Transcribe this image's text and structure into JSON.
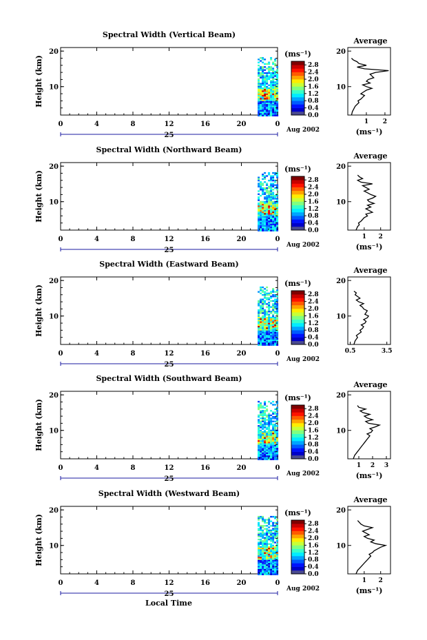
{
  "panels": [
    {
      "title": "Spectral Width (Vertical Beam)",
      "ylabel": "Height (km)",
      "y_ticks": [
        "20",
        "10"
      ],
      "x_ticks": [
        "0",
        "4",
        "8",
        "12",
        "16",
        "20",
        "0"
      ],
      "date_day": "25",
      "date_tag": "Aug 2002",
      "colorbar": {
        "unit": "(ms⁻¹)",
        "labels": [
          "2.8",
          "2.4",
          "2.0",
          "1.6",
          "1.2",
          "0.8",
          "0.4",
          "0.0"
        ]
      },
      "avg": {
        "title": "Average",
        "y_ticks": [
          "20",
          "10"
        ],
        "x_ticks": [
          "1",
          "2"
        ],
        "x_tick_values": [
          1,
          2
        ],
        "xlim": [
          0,
          2.3
        ],
        "unit": "(ms⁻¹)"
      }
    },
    {
      "title": "Spectral Width (Northward Beam)",
      "ylabel": "Height (km)",
      "y_ticks": [
        "20",
        "10"
      ],
      "x_ticks": [
        "0",
        "4",
        "8",
        "12",
        "16",
        "20",
        "0"
      ],
      "date_day": "25",
      "date_tag": "Aug 2002",
      "colorbar": {
        "unit": "(ms⁻¹)",
        "labels": [
          "2.8",
          "2.4",
          "2.0",
          "1.6",
          "1.2",
          "0.8",
          "0.4",
          "0.0"
        ]
      },
      "avg": {
        "title": "Average",
        "y_ticks": [
          "20",
          "10"
        ],
        "x_ticks": [
          "1",
          "2"
        ],
        "x_tick_values": [
          1,
          2
        ],
        "xlim": [
          0,
          2.6
        ],
        "unit": "(ms⁻¹)"
      }
    },
    {
      "title": "Spectral Width (Eastward Beam)",
      "ylabel": "Height (km)",
      "y_ticks": [
        "20",
        "10"
      ],
      "x_ticks": [
        "0",
        "4",
        "8",
        "12",
        "16",
        "20",
        "0"
      ],
      "date_day": "25",
      "date_tag": "Aug 2002",
      "colorbar": {
        "unit": "(ms⁻¹)",
        "labels": [
          "2.8",
          "2.4",
          "2.0",
          "1.6",
          "1.2",
          "0.8",
          "0.4",
          "0.0"
        ]
      },
      "avg": {
        "title": "Average",
        "y_ticks": [
          "20",
          "10"
        ],
        "x_ticks": [
          "0.5",
          "3.5"
        ],
        "x_tick_values": [
          0.5,
          3.5
        ],
        "xlim": [
          0.3,
          3.8
        ],
        "unit": ""
      }
    },
    {
      "title": "Spectral Width (Southward Beam)",
      "ylabel": "Height (km)",
      "y_ticks": [
        "20",
        "10"
      ],
      "x_ticks": [
        "0",
        "4",
        "8",
        "12",
        "16",
        "20",
        "0"
      ],
      "date_day": "25",
      "date_tag": "Aug 2002",
      "colorbar": {
        "unit": "(ms⁻¹)",
        "labels": [
          "2.8",
          "2.4",
          "2.0",
          "1.6",
          "1.2",
          "0.8",
          "0.4",
          "0.0"
        ]
      },
      "avg": {
        "title": "Average",
        "y_ticks": [
          "20",
          "10"
        ],
        "x_ticks": [
          "1",
          "2",
          "3"
        ],
        "x_tick_values": [
          1,
          2,
          3
        ],
        "xlim": [
          0.2,
          3.3
        ],
        "unit": "(ms⁻¹)"
      }
    },
    {
      "title": "Spectral Width (Westward Beam)",
      "ylabel": "Height (km)",
      "y_ticks": [
        "20",
        "10"
      ],
      "x_ticks": [
        "0",
        "4",
        "8",
        "12",
        "16",
        "20",
        "0"
      ],
      "date_day": "25",
      "date_tag": "Aug 2002",
      "colorbar": {
        "unit": "(ms⁻¹)",
        "labels": [
          "2.8",
          "2.4",
          "2.0",
          "1.6",
          "1.2",
          "0.8",
          "0.4",
          "0.0"
        ]
      },
      "avg": {
        "title": "Average",
        "y_ticks": [
          "20",
          "10"
        ],
        "x_ticks": [
          "1",
          "2"
        ],
        "x_tick_values": [
          1,
          2
        ],
        "xlim": [
          0,
          2.6
        ],
        "unit": "(ms⁻¹)"
      }
    }
  ],
  "xlabel": "Local Time",
  "chart_data": [
    {
      "type": "heatmap",
      "title": "Spectral Width (Vertical Beam)",
      "xlabel": "Local Time",
      "ylabel": "Height (km)",
      "xlim": [
        0,
        24
      ],
      "ylim": [
        2,
        21
      ],
      "data_x_range": [
        21.8,
        24
      ],
      "data_y_range": [
        2,
        18.3
      ],
      "colorscale_range": [
        0,
        3
      ],
      "colorbar_ticks": [
        0,
        0.4,
        0.8,
        1.2,
        1.6,
        2.0,
        2.4,
        2.8
      ],
      "avg_profile": {
        "x": [
          0.2,
          0.25,
          0.3,
          0.35,
          0.4,
          0.5,
          0.6,
          0.55,
          0.7,
          0.8,
          0.9,
          0.7,
          0.85,
          1.0,
          1.3,
          1.0,
          0.8,
          1.2,
          1.0,
          1.1,
          1.4,
          1.3,
          1.2,
          1.5,
          2.2,
          0.9,
          0.5,
          1.0,
          0.6,
          0.5,
          0.3,
          0.2
        ],
        "y": [
          2,
          3,
          3.5,
          4,
          4.5,
          5,
          5.5,
          6,
          6.5,
          7,
          7.5,
          8,
          8.5,
          9,
          9.5,
          10,
          10.5,
          11,
          11.5,
          12,
          12.5,
          13,
          13.5,
          14,
          14.5,
          15,
          15.5,
          16,
          16.5,
          17,
          17.5,
          18
        ]
      }
    },
    {
      "type": "heatmap",
      "title": "Spectral Width (Northward Beam)",
      "xlabel": "Local Time",
      "ylabel": "Height (km)",
      "xlim": [
        0,
        24
      ],
      "ylim": [
        2,
        21
      ],
      "data_x_range": [
        21.8,
        24
      ],
      "data_y_range": [
        2,
        18.3
      ],
      "colorscale_range": [
        0,
        3
      ],
      "colorbar_ticks": [
        0,
        0.4,
        0.8,
        1.2,
        1.6,
        2.0,
        2.4,
        2.8
      ],
      "avg_profile": {
        "x": [
          0.5,
          0.6,
          0.7,
          0.65,
          0.8,
          0.9,
          1.0,
          1.2,
          1.1,
          1.5,
          1.3,
          1.1,
          1.4,
          1.2,
          1.6,
          1.3,
          1.2,
          1.5,
          1.7,
          1.4,
          1.2,
          1.0,
          1.3,
          1.1,
          0.9,
          1.5,
          0.8,
          0.6,
          0.9,
          0.7,
          0.6
        ],
        "y": [
          2,
          3,
          3.5,
          4,
          4.5,
          5,
          5.5,
          6,
          6.5,
          7,
          7.5,
          8,
          8.5,
          9,
          9.5,
          10,
          10.5,
          11,
          11.5,
          12,
          12.5,
          13,
          13.5,
          14,
          14.5,
          15,
          15.5,
          16,
          16.5,
          17,
          17.5
        ]
      }
    },
    {
      "type": "heatmap",
      "title": "Spectral Width (Eastward Beam)",
      "xlabel": "Local Time",
      "ylabel": "Height (km)",
      "xlim": [
        0,
        24
      ],
      "ylim": [
        2,
        21
      ],
      "data_x_range": [
        21.8,
        24
      ],
      "data_y_range": [
        2,
        18.3
      ],
      "colorscale_range": [
        0,
        3
      ],
      "colorbar_ticks": [
        0,
        0.4,
        0.8,
        1.2,
        1.6,
        2.0,
        2.4,
        2.8
      ],
      "avg_profile": {
        "x": [
          0.8,
          0.9,
          1.0,
          1.1,
          1.0,
          1.2,
          1.4,
          1.3,
          1.5,
          1.6,
          1.4,
          1.7,
          1.8,
          1.6,
          1.9,
          2.0,
          1.7,
          1.8,
          1.9,
          1.6,
          1.5,
          1.3,
          1.6,
          1.2,
          1.0,
          1.3,
          1.1,
          0.9,
          1.0,
          0.8
        ],
        "y": [
          2,
          3,
          3.5,
          4,
          4.5,
          5,
          5.5,
          6,
          6.5,
          7,
          7.5,
          8,
          8.5,
          9,
          9.5,
          10,
          10.5,
          11,
          11.5,
          12,
          12.5,
          13,
          13.5,
          14,
          14.5,
          15,
          15.5,
          16,
          16.5,
          17
        ]
      }
    },
    {
      "type": "heatmap",
      "title": "Spectral Width (Southward Beam)",
      "xlabel": "Local Time",
      "ylabel": "Height (km)",
      "xlim": [
        0,
        24
      ],
      "ylim": [
        2,
        21
      ],
      "data_x_range": [
        21.8,
        24
      ],
      "data_y_range": [
        2,
        18.3
      ],
      "colorscale_range": [
        0,
        3
      ],
      "colorbar_ticks": [
        0,
        0.4,
        0.8,
        1.2,
        1.6,
        2.0,
        2.4,
        2.8
      ],
      "avg_profile": {
        "x": [
          0.6,
          0.7,
          0.8,
          0.9,
          1.0,
          1.1,
          1.2,
          1.3,
          1.4,
          1.5,
          1.6,
          1.7,
          1.8,
          1.6,
          1.9,
          2.0,
          1.8,
          2.2,
          2.5,
          1.7,
          1.5,
          2.0,
          1.6,
          1.4,
          1.8,
          1.3,
          1.1,
          1.5,
          1.0,
          0.9
        ],
        "y": [
          2,
          3,
          3.5,
          4,
          4.5,
          5,
          5.5,
          6,
          6.5,
          7,
          7.5,
          8,
          8.5,
          9,
          9.5,
          10,
          10.5,
          11,
          11.5,
          12,
          12.5,
          13,
          13.5,
          14,
          14.5,
          15,
          15.5,
          16,
          16.5,
          17
        ]
      }
    },
    {
      "type": "heatmap",
      "title": "Spectral Width (Westward Beam)",
      "xlabel": "Local Time",
      "ylabel": "Height (km)",
      "xlim": [
        0,
        24
      ],
      "ylim": [
        2,
        21
      ],
      "data_x_range": [
        21.8,
        24
      ],
      "data_y_range": [
        2,
        18.3
      ],
      "colorscale_range": [
        0,
        3
      ],
      "colorbar_ticks": [
        0,
        0.4,
        0.8,
        1.2,
        1.6,
        2.0,
        2.4,
        2.8
      ],
      "avg_profile": {
        "x": [
          0.5,
          0.6,
          0.7,
          0.8,
          0.9,
          1.0,
          1.1,
          1.2,
          1.3,
          1.4,
          1.3,
          1.5,
          1.6,
          1.8,
          2.0,
          2.3,
          1.7,
          1.4,
          1.6,
          1.2,
          1.0,
          1.3,
          1.1,
          0.9,
          1.2,
          1.5,
          1.0,
          0.8,
          0.7,
          0.6
        ],
        "y": [
          2,
          3,
          3.5,
          4,
          4.5,
          5,
          5.5,
          6,
          6.5,
          7,
          7.5,
          8,
          8.5,
          9,
          9.5,
          10,
          10.5,
          11,
          11.5,
          12,
          12.5,
          13,
          13.5,
          14,
          14.5,
          15,
          15.5,
          16,
          16.5,
          17
        ]
      }
    }
  ]
}
